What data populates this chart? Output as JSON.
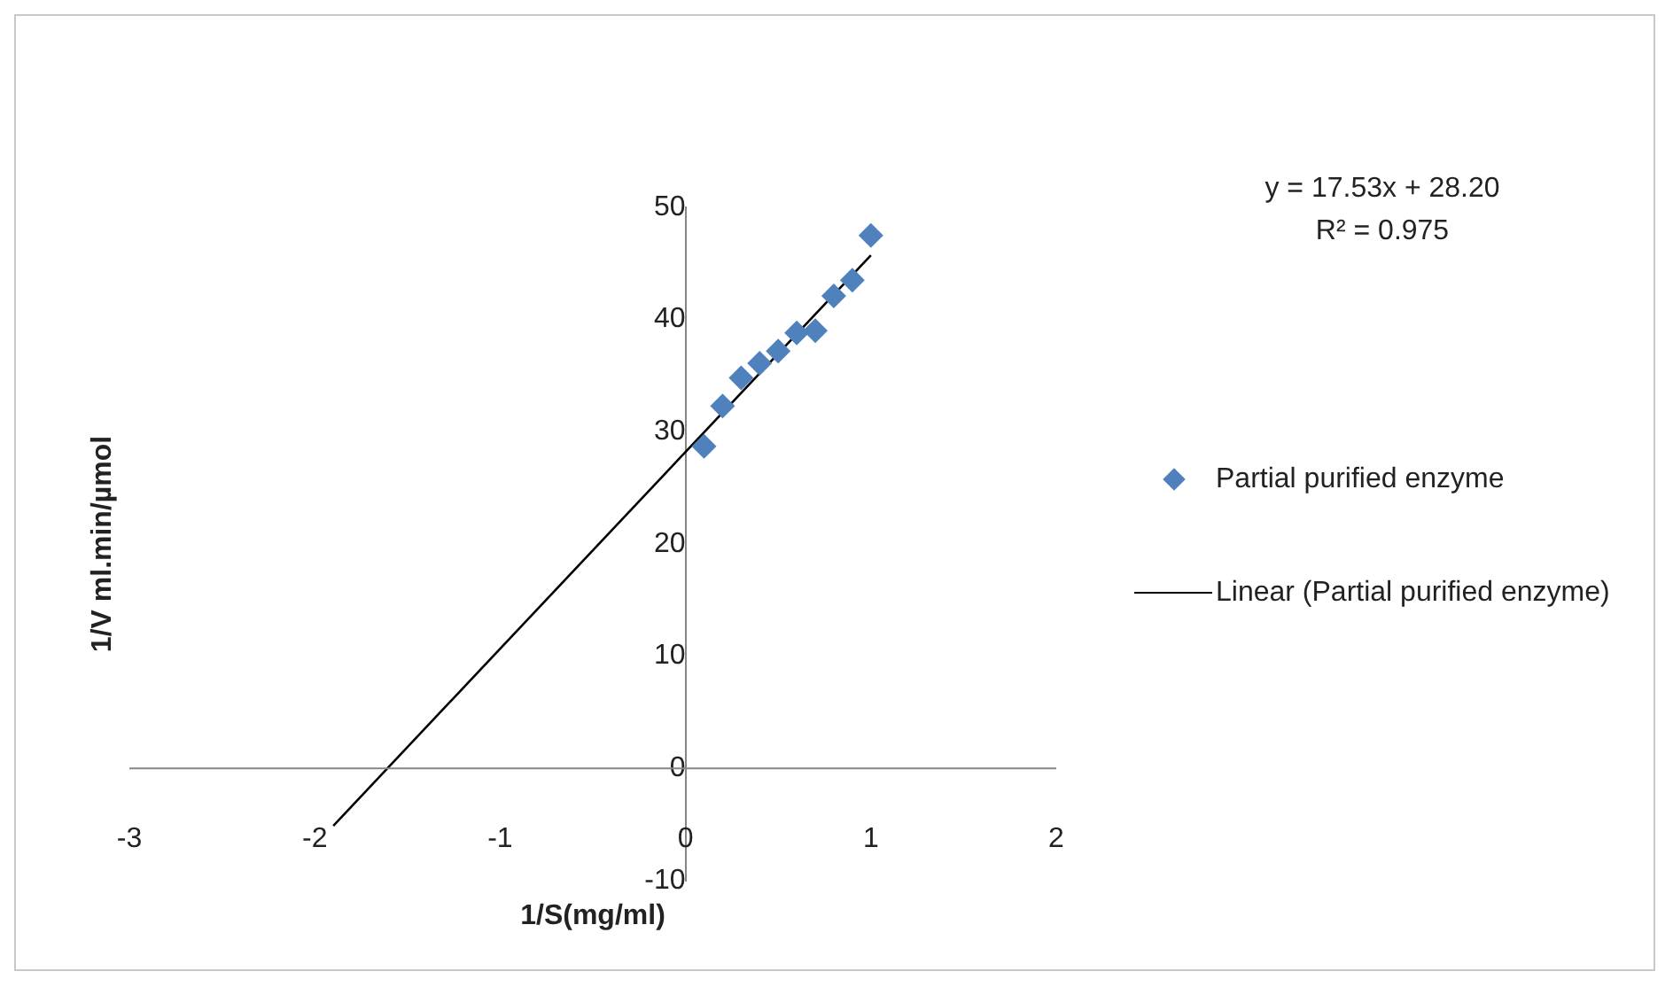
{
  "chart_data": {
    "type": "scatter",
    "xlabel": "1/S(mg/ml)",
    "ylabel": "1/V ml.min/µmol",
    "xlim": [
      -3,
      2
    ],
    "xticks": [
      -3,
      -2,
      -1,
      0,
      1,
      2
    ],
    "ylim": [
      -10,
      50
    ],
    "yticks": [
      -10,
      0,
      10,
      20,
      30,
      40,
      50
    ],
    "grid": false,
    "legend": "right",
    "marker": "diamond",
    "annotations": [
      "y = 17.53x + 28.20",
      "R² = 0.975"
    ],
    "series": [
      {
        "name": "Partial purified enzyme",
        "color": "#4f81bd",
        "x": [
          0.1,
          0.2,
          0.3,
          0.4,
          0.5,
          0.6,
          0.7,
          0.8,
          0.9,
          1.0
        ],
        "values": [
          28.7,
          32.3,
          34.8,
          36.1,
          37.2,
          38.8,
          39,
          42.1,
          43.5,
          47.5
        ]
      },
      {
        "name": "Linear (Partial purified enzyme)",
        "type": "line",
        "color": "#000000",
        "line_style": "solid",
        "marker": "none",
        "x": [
          -1.9,
          1.0
        ],
        "values": [
          -5.11,
          45.73
        ]
      }
    ]
  }
}
